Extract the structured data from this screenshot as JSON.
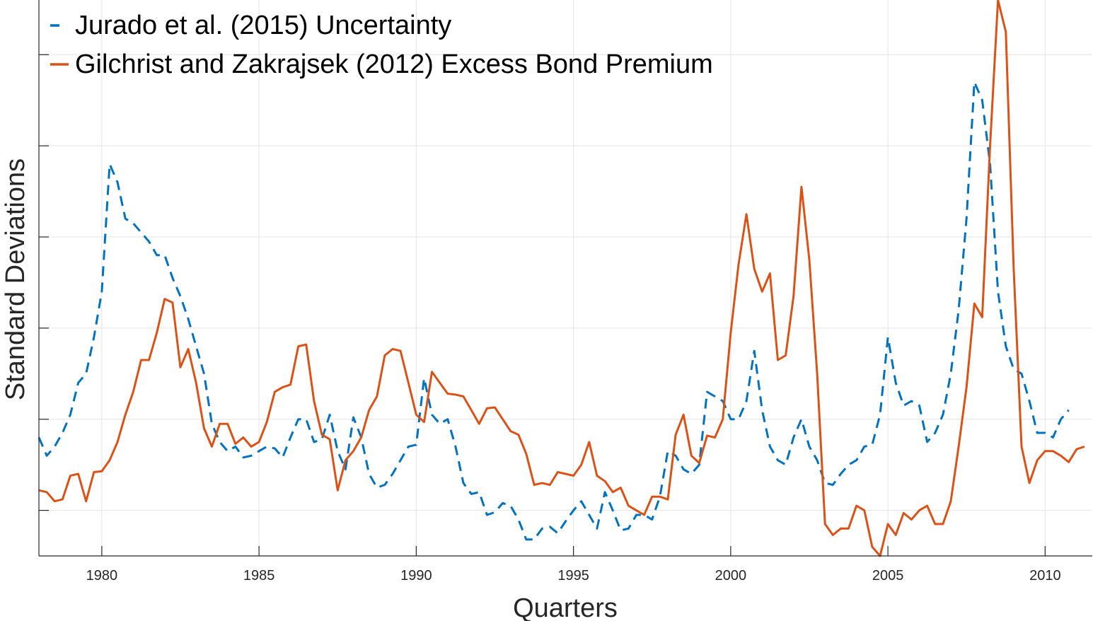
{
  "chart_data": {
    "type": "line",
    "xlabel": "Quarters",
    "ylabel": "Standard Deviations",
    "xlim": [
      1978.0,
      2011.5
    ],
    "ylim": [
      -1.5,
      4.6
    ],
    "x_ticks": [
      1980,
      1985,
      1990,
      1995,
      2000,
      2005,
      2010
    ],
    "y_ticks": [
      -1,
      0,
      1,
      2,
      3,
      4
    ],
    "y_tick_labels_shown": false,
    "grid": true,
    "legend": {
      "position": "top-left"
    },
    "x_start": 1978.0,
    "x_step": 0.25,
    "series": [
      {
        "name": "Jurado et al. (2015) Uncertainty",
        "style": "dashed",
        "color": "#0072BD",
        "values": [
          -0.2,
          -0.4,
          -0.3,
          -0.15,
          0.05,
          0.4,
          0.5,
          0.9,
          1.4,
          2.8,
          2.6,
          2.2,
          2.15,
          2.05,
          1.95,
          1.8,
          1.8,
          1.55,
          1.35,
          1.1,
          0.8,
          0.5,
          -0.05,
          -0.25,
          -0.35,
          -0.3,
          -0.42,
          -0.4,
          -0.35,
          -0.3,
          -0.32,
          -0.42,
          -0.2,
          0,
          0,
          -0.25,
          -0.22,
          0.05,
          -0.35,
          -0.55,
          0.02,
          -0.2,
          -0.6,
          -0.75,
          -0.72,
          -0.6,
          -0.45,
          -0.3,
          -0.28,
          0.45,
          0.05,
          -0.05,
          0,
          -0.3,
          -0.7,
          -0.82,
          -0.8,
          -1.05,
          -1.02,
          -0.92,
          -0.95,
          -1.1,
          -1.32,
          -1.32,
          -1.2,
          -1.18,
          -1.25,
          -1.12,
          -1,
          -0.9,
          -1.05,
          -1.2,
          -0.8,
          -1.0,
          -1.22,
          -1.2,
          -1.05,
          -1.05,
          -1.1,
          -0.85,
          -0.35,
          -0.4,
          -0.55,
          -0.6,
          -0.5,
          0.3,
          0.25,
          0.2,
          0.0,
          0.0,
          0.2,
          0.75,
          0.1,
          -0.3,
          -0.45,
          -0.5,
          -0.2,
          0.0,
          -0.3,
          -0.45,
          -0.7,
          -0.72,
          -0.6,
          -0.5,
          -0.45,
          -0.3,
          -0.28,
          0.05,
          0.9,
          0.4,
          0.15,
          0.2,
          0.15,
          -0.25,
          -0.15,
          0.05,
          0.5,
          1.2,
          2.2,
          3.7,
          3.5,
          2.8,
          1.4,
          0.8,
          0.55,
          0.5,
          0.2,
          -0.15,
          -0.15,
          -0.2,
          0.0,
          0.1
        ]
      },
      {
        "name": "Gilchrist and Zakrajsek (2012) Excess Bond Premium",
        "style": "solid",
        "color": "#D95319",
        "values": [
          -0.78,
          -0.8,
          -0.9,
          -0.88,
          -0.62,
          -0.6,
          -0.9,
          -0.58,
          -0.57,
          -0.45,
          -0.25,
          0.05,
          0.3,
          0.65,
          0.65,
          0.95,
          1.32,
          1.28,
          0.57,
          0.77,
          0.4,
          -0.1,
          -0.3,
          -0.05,
          -0.05,
          -0.27,
          -0.2,
          -0.3,
          -0.25,
          -0.03,
          0.3,
          0.35,
          0.38,
          0.8,
          0.82,
          0.2,
          -0.17,
          -0.22,
          -0.78,
          -0.45,
          -0.35,
          -0.2,
          0.1,
          0.25,
          0.7,
          0.77,
          0.75,
          0.4,
          0.05,
          -0.03,
          0.52,
          0.4,
          0.28,
          0.27,
          0.25,
          0.1,
          -0.05,
          0.12,
          0.13,
          0.0,
          -0.13,
          -0.17,
          -0.38,
          -0.72,
          -0.7,
          -0.72,
          -0.58,
          -0.6,
          -0.62,
          -0.5,
          -0.25,
          -0.62,
          -0.68,
          -0.8,
          -0.75,
          -0.95,
          -1.0,
          -1.05,
          -0.85,
          -0.85,
          -0.88,
          -0.17,
          0.05,
          -0.4,
          -0.48,
          -0.18,
          -0.2,
          0.0,
          0.95,
          1.7,
          2.25,
          1.65,
          1.4,
          1.6,
          0.65,
          0.7,
          1.35,
          2.55,
          1.75,
          0.5,
          -1.15,
          -1.27,
          -1.2,
          -1.2,
          -0.95,
          -1.0,
          -1.4,
          -1.5,
          -1.15,
          -1.27,
          -1.03,
          -1.1,
          -1.0,
          -0.95,
          -1.15,
          -1.15,
          -0.9,
          -0.3,
          0.35,
          1.27,
          1.12,
          3.0,
          4.6,
          4.25,
          1.65,
          -0.3,
          -0.7,
          -0.45,
          -0.35,
          -0.35,
          -0.4,
          -0.47,
          -0.33,
          -0.3
        ]
      }
    ]
  }
}
